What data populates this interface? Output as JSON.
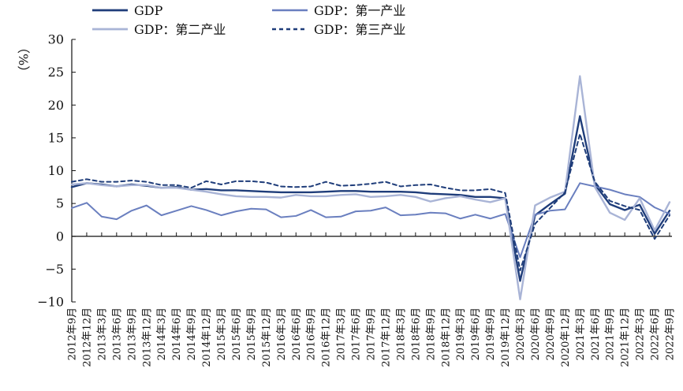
{
  "chart_data": {
    "type": "line",
    "title": "",
    "xlabel": "",
    "ylabel": "（%）",
    "ylim": [
      -10,
      30
    ],
    "yticks": [
      -10,
      -5,
      0,
      5,
      10,
      15,
      20,
      25,
      30
    ],
    "grid": false,
    "legend_position": "top-left",
    "categories": [
      "2012年9月",
      "2012年12月",
      "2013年3月",
      "2013年6月",
      "2013年9月",
      "2013年12月",
      "2014年3月",
      "2014年6月",
      "2014年9月",
      "2014年12月",
      "2015年3月",
      "2015年6月",
      "2015年9月",
      "2015年12月",
      "2016年3月",
      "2016年6月",
      "2016年9月",
      "2016年12月",
      "2017年3月",
      "2017年6月",
      "2017年9月",
      "2017年12月",
      "2018年3月",
      "2018年6月",
      "2018年9月",
      "2018年12月",
      "2019年3月",
      "2019年6月",
      "2019年9月",
      "2019年12月",
      "2020年3月",
      "2020年6月",
      "2020年9月",
      "2020年12月",
      "2021年3月",
      "2021年6月",
      "2021年9月",
      "2021年12月",
      "2022年3月",
      "2022年6月",
      "2022年9月"
    ],
    "series": [
      {
        "name": "GDP",
        "color": "#1f3d7a",
        "width": 2.4,
        "dash": "",
        "values": [
          7.5,
          8.1,
          7.9,
          7.6,
          7.9,
          7.7,
          7.4,
          7.5,
          7.1,
          7.2,
          7.0,
          7.0,
          6.9,
          6.8,
          6.7,
          6.7,
          6.7,
          6.8,
          6.9,
          6.9,
          6.8,
          6.8,
          6.8,
          6.7,
          6.5,
          6.4,
          6.3,
          6.0,
          6.0,
          5.8,
          -6.8,
          3.2,
          4.9,
          6.5,
          18.3,
          7.9,
          4.9,
          4.0,
          4.8,
          0.4,
          3.9
        ]
      },
      {
        "name": "GDP：第一产业",
        "color": "#6a7fbf",
        "width": 2.0,
        "dash": "",
        "values": [
          4.3,
          5.1,
          3.0,
          2.6,
          3.9,
          4.7,
          3.2,
          3.9,
          4.6,
          4.0,
          3.2,
          3.8,
          4.2,
          4.1,
          2.9,
          3.1,
          4.0,
          2.9,
          3.0,
          3.8,
          3.9,
          4.4,
          3.2,
          3.3,
          3.6,
          3.5,
          2.7,
          3.3,
          2.7,
          3.4,
          -3.2,
          3.3,
          3.9,
          4.1,
          8.1,
          7.6,
          7.1,
          6.4,
          6.0,
          4.4,
          3.4
        ]
      },
      {
        "name": "GDP：第二产业",
        "color": "#a9b4d6",
        "width": 2.4,
        "dash": "",
        "values": [
          7.9,
          8.1,
          7.8,
          7.6,
          7.8,
          7.8,
          7.4,
          7.4,
          7.1,
          6.8,
          6.4,
          6.1,
          6.0,
          6.0,
          5.9,
          6.3,
          6.1,
          6.1,
          6.3,
          6.4,
          6.0,
          6.1,
          6.3,
          6.0,
          5.3,
          5.8,
          6.1,
          5.6,
          5.2,
          5.8,
          -9.6,
          4.7,
          5.9,
          6.8,
          24.4,
          7.5,
          3.6,
          2.5,
          5.8,
          0.9,
          5.2
        ]
      },
      {
        "name": "GDP：第三产业",
        "color": "#1f3d7a",
        "width": 2.0,
        "dash": "5,4",
        "values": [
          8.3,
          8.7,
          8.3,
          8.3,
          8.5,
          8.3,
          7.8,
          7.8,
          7.4,
          8.4,
          7.9,
          8.4,
          8.4,
          8.2,
          7.6,
          7.5,
          7.6,
          8.3,
          7.7,
          7.8,
          8.0,
          8.3,
          7.6,
          7.8,
          7.9,
          7.4,
          7.0,
          7.0,
          7.2,
          6.6,
          -5.2,
          1.9,
          4.3,
          6.7,
          15.6,
          8.3,
          5.4,
          4.6,
          4.0,
          -0.4,
          3.2
        ]
      }
    ]
  }
}
